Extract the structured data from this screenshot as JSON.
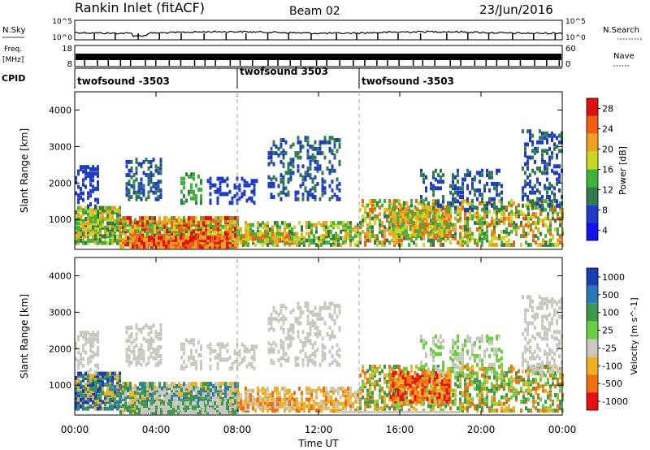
{
  "header": {
    "radar": "Rankin Inlet (fitACF)",
    "beam": "Beam 02",
    "date": "23/Jun/2016"
  },
  "strips": {
    "nsky": {
      "label": "N.Sky",
      "ticks": [
        "10^5",
        "10^0"
      ],
      "right_label": "N.Search",
      "right_ticks": [
        "10^5",
        "10^0"
      ]
    },
    "freq": {
      "label_top": "Freq.",
      "label_bottom": "[MHz]",
      "ticks": [
        "18",
        "8"
      ],
      "right_label": "Nave",
      "right_ticks": [
        "60",
        "0"
      ]
    },
    "cpid": {
      "label": "CPID",
      "segments": [
        {
          "name": "twofsound -3503",
          "start_hour": 0
        },
        {
          "name": "twofsound 3503",
          "start_hour": 8
        },
        {
          "name": "twofsound -3503",
          "start_hour": 14
        }
      ]
    }
  },
  "time_axis": {
    "label": "Time UT",
    "ticks": [
      "00:00",
      "04:00",
      "08:00",
      "12:00",
      "16:00",
      "20:00",
      "00:00"
    ],
    "tick_hours": [
      0,
      4,
      8,
      12,
      16,
      20,
      24
    ],
    "dashed_hours": [
      8,
      14
    ]
  },
  "chart_data": [
    {
      "type": "heatmap",
      "panel": "power",
      "ylabel": "Slant Range [km]",
      "ylim": [
        180,
        4500
      ],
      "yticks": [
        "1000",
        "2000",
        "3000",
        "4000"
      ],
      "ytick_values": [
        1000,
        2000,
        3000,
        4000
      ],
      "xlim": [
        0,
        24
      ],
      "colorbar": {
        "label": "Power [dB]",
        "ticks": [
          "4",
          "8",
          "12",
          "16",
          "20",
          "24",
          "28"
        ],
        "tick_values": [
          4,
          8,
          12,
          16,
          20,
          24,
          28
        ],
        "range": [
          2,
          30
        ],
        "colors": [
          "#1010f0",
          "#1e3cc8",
          "#2f7b4d",
          "#3cb43c",
          "#c8d820",
          "#f0a020",
          "#f06010",
          "#e01010"
        ]
      }
    },
    {
      "type": "heatmap",
      "panel": "velocity",
      "ylabel": "Slant Range [km]",
      "ylim": [
        180,
        4500
      ],
      "yticks": [
        "1000",
        "2000",
        "3000",
        "4000"
      ],
      "ytick_values": [
        1000,
        2000,
        3000,
        4000
      ],
      "xlim": [
        0,
        24
      ],
      "colorbar": {
        "label": "Velocity [m s^-1]",
        "ticks": [
          "1000",
          "500",
          "100",
          "25",
          "-25",
          "-100",
          "-500",
          "-1000"
        ],
        "colors": [
          "#1a3cb4",
          "#2a78b8",
          "#3a9a4a",
          "#6ccf40",
          "#c8c8c0",
          "#f0b020",
          "#f07010",
          "#e81010"
        ]
      }
    }
  ]
}
